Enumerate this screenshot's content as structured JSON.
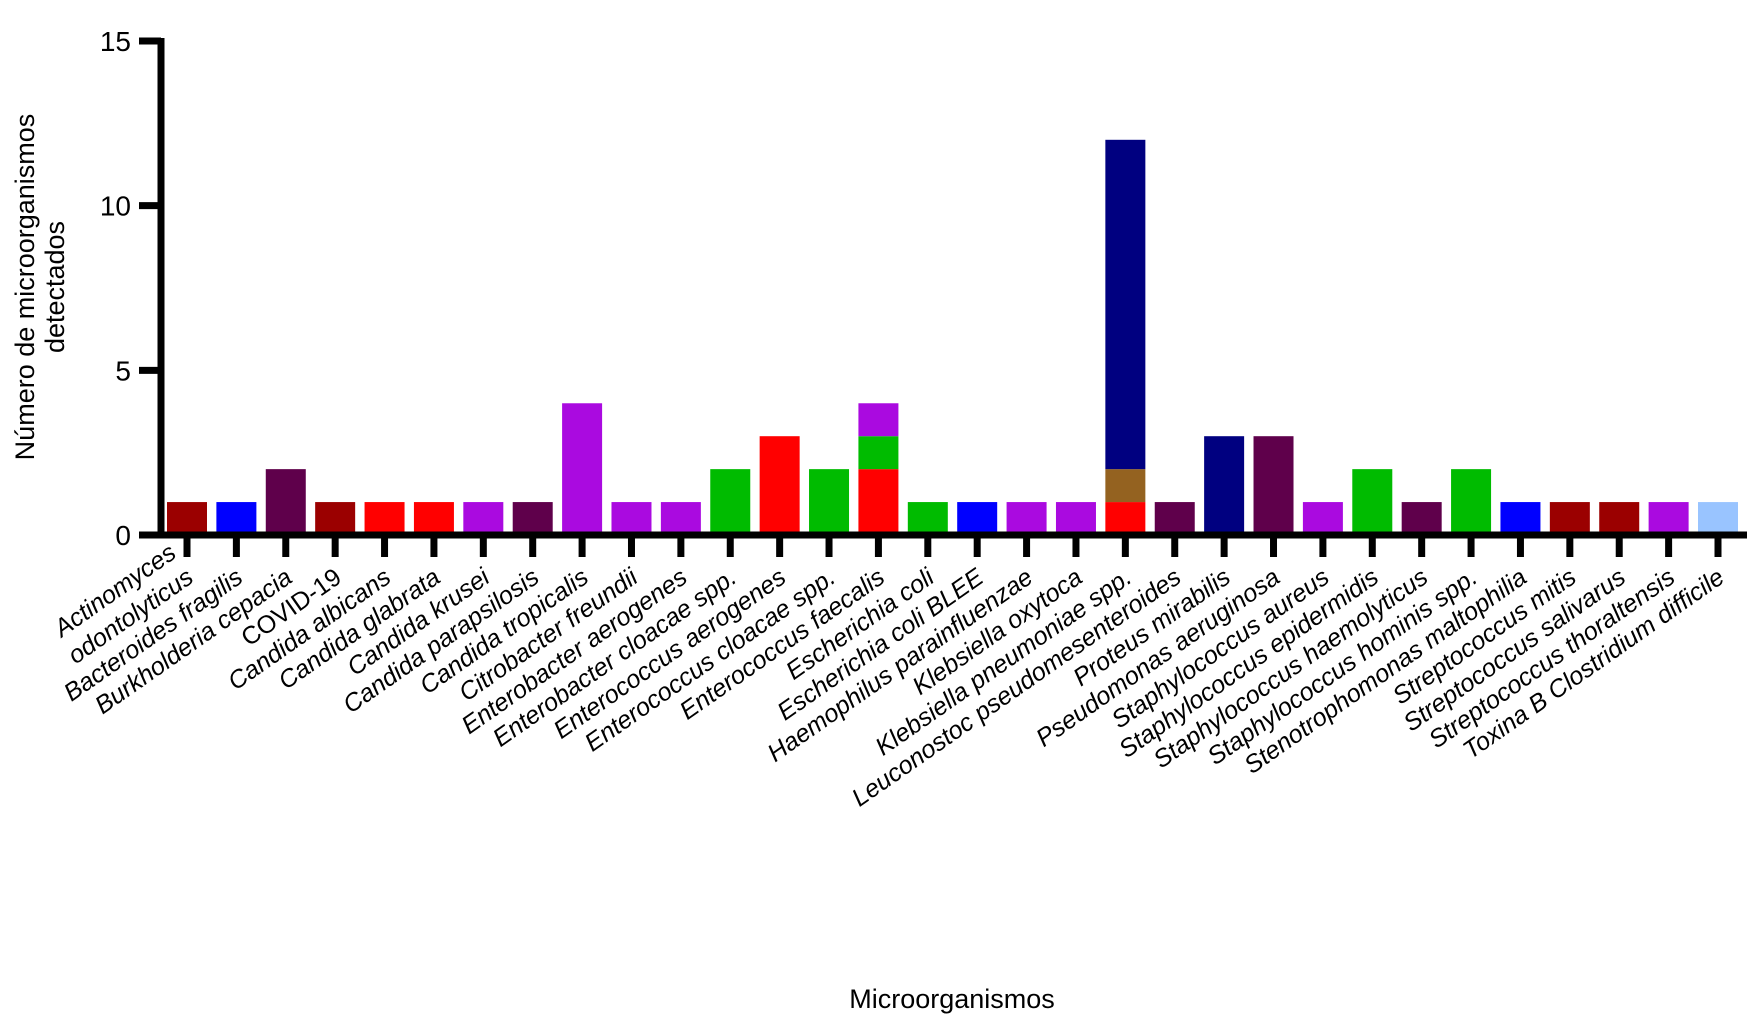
{
  "chart_data": {
    "type": "bar",
    "stacked": true,
    "title": "",
    "xlabel": "Microorganismos",
    "ylabel": [
      "Número de microorganismos",
      "detectados"
    ],
    "ylim": [
      0,
      15
    ],
    "yticks": [
      "0",
      "5",
      "10",
      "15"
    ],
    "grid": false,
    "colors": {
      "darkred": "#9b0000",
      "blue": "#0000ff",
      "darkpurple": "#5f004b",
      "red": "#ff0000",
      "violet": "#aa0ae0",
      "green": "#00bb00",
      "navy": "#000080",
      "brown": "#946220",
      "lightblue": "#99c4ff"
    },
    "categories": [
      {
        "lines": [
          "Actinomyces",
          "odontolyticus"
        ],
        "segments": [
          {
            "value": 1,
            "color": "darkred"
          }
        ]
      },
      {
        "lines": [
          "Bacteroides fragilis"
        ],
        "segments": [
          {
            "value": 1,
            "color": "blue"
          }
        ]
      },
      {
        "lines": [
          "Burkholderia cepacia"
        ],
        "segments": [
          {
            "value": 2,
            "color": "darkpurple"
          }
        ]
      },
      {
        "lines": [
          "COVID-19"
        ],
        "upright": true,
        "segments": [
          {
            "value": 1,
            "color": "darkred"
          }
        ]
      },
      {
        "lines": [
          "Candida albicans"
        ],
        "segments": [
          {
            "value": 1,
            "color": "red"
          }
        ]
      },
      {
        "lines": [
          "Candida glabrata"
        ],
        "segments": [
          {
            "value": 1,
            "color": "red"
          }
        ]
      },
      {
        "lines": [
          "Candida krusei"
        ],
        "segments": [
          {
            "value": 1,
            "color": "violet"
          }
        ]
      },
      {
        "lines": [
          "Candida parapsilosis"
        ],
        "segments": [
          {
            "value": 1,
            "color": "darkpurple"
          }
        ]
      },
      {
        "lines": [
          "Candida tropicalis"
        ],
        "segments": [
          {
            "value": 4,
            "color": "violet"
          }
        ]
      },
      {
        "lines": [
          "Citrobacter freundii"
        ],
        "segments": [
          {
            "value": 1,
            "color": "violet"
          }
        ]
      },
      {
        "lines": [
          "Enterobacter aerogenes"
        ],
        "segments": [
          {
            "value": 1,
            "color": "violet"
          }
        ]
      },
      {
        "lines": [
          "Enterobacter cloacae spp."
        ],
        "segments": [
          {
            "value": 2,
            "color": "green"
          }
        ]
      },
      {
        "lines": [
          "Enterococcus aerogenes"
        ],
        "segments": [
          {
            "value": 3,
            "color": "red"
          }
        ]
      },
      {
        "lines": [
          "Enterococcus cloacae spp."
        ],
        "segments": [
          {
            "value": 2,
            "color": "green"
          }
        ]
      },
      {
        "lines": [
          "Enterococcus faecalis"
        ],
        "segments": [
          {
            "value": 2,
            "color": "red"
          },
          {
            "value": 1,
            "color": "green"
          },
          {
            "value": 1,
            "color": "violet"
          }
        ]
      },
      {
        "lines": [
          "Escherichia coli"
        ],
        "segments": [
          {
            "value": 1,
            "color": "green"
          }
        ]
      },
      {
        "lines": [
          "Escherichia coli BLEE"
        ],
        "segments": [
          {
            "value": 1,
            "color": "blue"
          }
        ]
      },
      {
        "lines": [
          "Haemophilus parainfluenzae"
        ],
        "segments": [
          {
            "value": 1,
            "color": "violet"
          }
        ]
      },
      {
        "lines": [
          "Klebsiella oxytoca"
        ],
        "segments": [
          {
            "value": 1,
            "color": "violet"
          }
        ]
      },
      {
        "lines": [
          "Klebsiella pneumoniae spp."
        ],
        "segments": [
          {
            "value": 1,
            "color": "red"
          },
          {
            "value": 1,
            "color": "brown"
          },
          {
            "value": 10,
            "color": "navy"
          }
        ]
      },
      {
        "lines": [
          "Leuconostoc pseudomesenteroides"
        ],
        "segments": [
          {
            "value": 1,
            "color": "darkpurple"
          }
        ]
      },
      {
        "lines": [
          "Proteus mirabilis"
        ],
        "segments": [
          {
            "value": 3,
            "color": "navy"
          }
        ]
      },
      {
        "lines": [
          "Pseudomonas aeruginosa"
        ],
        "segments": [
          {
            "value": 3,
            "color": "darkpurple"
          }
        ]
      },
      {
        "lines": [
          "Staphylococcus aureus"
        ],
        "segments": [
          {
            "value": 1,
            "color": "violet"
          }
        ]
      },
      {
        "lines": [
          "Staphylococcus epidermidis"
        ],
        "segments": [
          {
            "value": 2,
            "color": "green"
          }
        ]
      },
      {
        "lines": [
          "Staphylococcus haemolyticus"
        ],
        "segments": [
          {
            "value": 1,
            "color": "darkpurple"
          }
        ]
      },
      {
        "lines": [
          "Staphylococcus hominis spp."
        ],
        "segments": [
          {
            "value": 2,
            "color": "green"
          }
        ]
      },
      {
        "lines": [
          "Stenotrophomonas maltophilia"
        ],
        "segments": [
          {
            "value": 1,
            "color": "blue"
          }
        ]
      },
      {
        "lines": [
          "Streptococcus mitis"
        ],
        "segments": [
          {
            "value": 1,
            "color": "darkred"
          }
        ]
      },
      {
        "lines": [
          "Streptococcus salivarus"
        ],
        "segments": [
          {
            "value": 1,
            "color": "darkred"
          }
        ]
      },
      {
        "lines": [
          "Streptococcus thoraltensis"
        ],
        "segments": [
          {
            "value": 1,
            "color": "violet"
          }
        ]
      },
      {
        "lines": [
          "Toxina B Clostridium difficile"
        ],
        "segments": [
          {
            "value": 1,
            "color": "lightblue"
          }
        ]
      }
    ]
  }
}
